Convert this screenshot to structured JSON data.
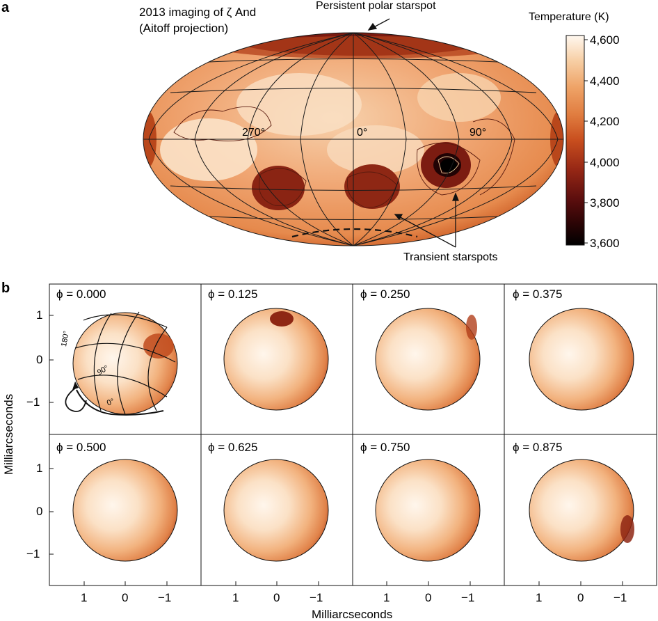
{
  "panel_a": {
    "letter": "a",
    "title_line1": "2013 imaging of ζ And",
    "title_line2": "(Aitoff projection)",
    "annotation_polar": "Persistent polar starspot",
    "annotation_transient": "Transient starspots",
    "longitude_labels": [
      "270°",
      "0°",
      "90°"
    ],
    "colorbar": {
      "title": "Temperature (K)",
      "ticks": [
        "4,600",
        "4,400",
        "4,200",
        "4,000",
        "3,800",
        "3,600"
      ],
      "tick_values": [
        4600,
        4400,
        4200,
        4000,
        3800,
        3600
      ],
      "range": [
        3600,
        4600
      ],
      "colors": [
        "#000000",
        "#3a0606",
        "#6e1212",
        "#a32d16",
        "#cf5a22",
        "#e68a4d",
        "#f2b27e",
        "#f9d6b3",
        "#fff6ec"
      ]
    }
  },
  "panel_b": {
    "letter": "b",
    "phase_labels": [
      "ϕ = 0.000",
      "ϕ = 0.125",
      "ϕ = 0.250",
      "ϕ = 0.375",
      "ϕ = 0.500",
      "ϕ = 0.625",
      "ϕ = 0.750",
      "ϕ = 0.875"
    ],
    "phase_values": [
      0.0,
      0.125,
      0.25,
      0.375,
      0.5,
      0.625,
      0.75,
      0.875
    ],
    "grid_labels": [
      "180°",
      "90°",
      "0°"
    ],
    "y_ticks": [
      "1",
      "0",
      "−1"
    ],
    "x_ticks": [
      "1",
      "0",
      "−1"
    ],
    "axis_range_mas": [
      -1.7,
      1.7
    ],
    "ylabel": "Milliarcseconds",
    "xlabel": "Milliarcseconds"
  }
}
